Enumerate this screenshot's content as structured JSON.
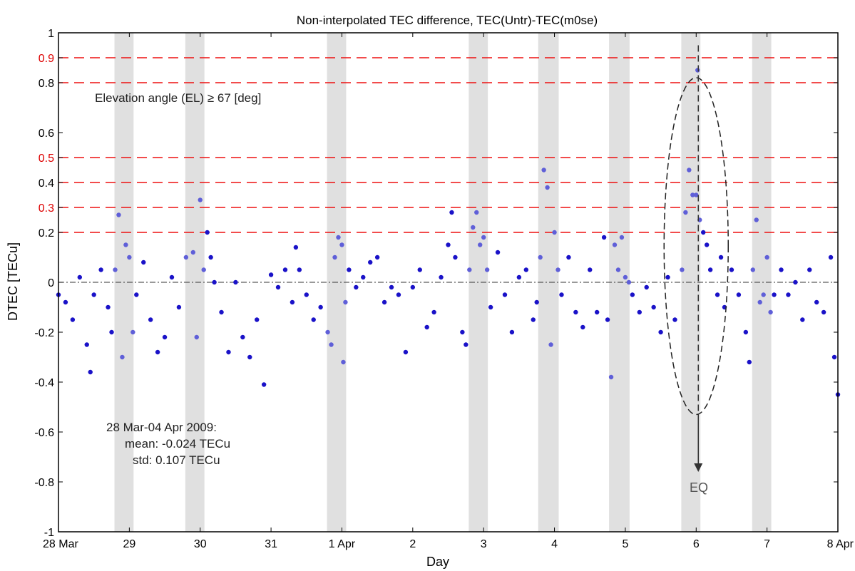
{
  "chart_data": {
    "type": "scatter",
    "title": "Non-interpolated TEC difference, TEC(Untr)-TEC(m0se)",
    "xlabel": "Day",
    "ylabel": "DTEC [TECu]",
    "xlim": [
      0,
      11
    ],
    "ylim": [
      -1,
      1
    ],
    "x_tick_positions": [
      0,
      1,
      2,
      3,
      4,
      5,
      6,
      7,
      8,
      9,
      10,
      11
    ],
    "x_tick_labels": [
      "28 Mar",
      "29",
      "30",
      "31",
      "1 Apr",
      "2",
      "3",
      "4",
      "5",
      "6",
      "7",
      "8 Apr"
    ],
    "y_ticks": [
      {
        "value": 1,
        "label": "1"
      },
      {
        "value": 0.9,
        "label": "0.9"
      },
      {
        "value": 0.8,
        "label": "0.8"
      },
      {
        "value": 0.6,
        "label": "0.6"
      },
      {
        "value": 0.5,
        "label": "0.5"
      },
      {
        "value": 0.4,
        "label": "0.4"
      },
      {
        "value": 0.3,
        "label": "0.3"
      },
      {
        "value": 0.2,
        "label": "0.2"
      },
      {
        "value": 0,
        "label": "0"
      },
      {
        "value": -0.2,
        "label": "-0.2"
      },
      {
        "value": -0.4,
        "label": "-0.4"
      },
      {
        "value": -0.6,
        "label": "-0.6"
      },
      {
        "value": -0.8,
        "label": "-0.8"
      },
      {
        "value": -1,
        "label": "-1"
      }
    ],
    "highlight_tick_values": [
      0.9,
      0.5,
      0.3
    ],
    "threshold_lines": [
      0.9,
      0.8,
      0.5,
      0.4,
      0.3,
      0.2
    ],
    "zero_line": 0,
    "shaded_bands": [
      [
        0.79,
        1.06
      ],
      [
        1.79,
        2.06
      ],
      [
        3.79,
        4.06
      ],
      [
        5.79,
        6.06
      ],
      [
        6.77,
        7.06
      ],
      [
        7.77,
        8.06
      ],
      [
        8.79,
        9.06
      ],
      [
        9.79,
        10.06
      ]
    ],
    "series": [
      {
        "points": [
          [
            0.0,
            -0.05
          ],
          [
            0.1,
            -0.08
          ],
          [
            0.2,
            -0.15
          ],
          [
            0.3,
            0.02
          ],
          [
            0.4,
            -0.25
          ],
          [
            0.45,
            -0.36
          ],
          [
            0.5,
            -0.05
          ],
          [
            0.6,
            0.05
          ],
          [
            0.7,
            -0.1
          ],
          [
            0.75,
            -0.2
          ],
          [
            0.8,
            0.05
          ],
          [
            0.85,
            0.27
          ],
          [
            0.9,
            -0.3
          ],
          [
            0.95,
            0.15
          ],
          [
            1.0,
            0.1
          ],
          [
            1.05,
            -0.2
          ],
          [
            1.1,
            -0.05
          ],
          [
            1.2,
            0.08
          ],
          [
            1.3,
            -0.15
          ],
          [
            1.4,
            -0.28
          ],
          [
            1.5,
            -0.22
          ],
          [
            1.6,
            0.02
          ],
          [
            1.7,
            -0.1
          ],
          [
            1.8,
            0.1
          ],
          [
            1.9,
            0.12
          ],
          [
            1.95,
            -0.22
          ],
          [
            2.0,
            0.33
          ],
          [
            2.05,
            0.05
          ],
          [
            2.1,
            0.2
          ],
          [
            2.15,
            0.1
          ],
          [
            2.2,
            0.0
          ],
          [
            2.3,
            -0.12
          ],
          [
            2.4,
            -0.28
          ],
          [
            2.5,
            0.0
          ],
          [
            2.6,
            -0.22
          ],
          [
            2.7,
            -0.3
          ],
          [
            2.8,
            -0.15
          ],
          [
            2.9,
            -0.41
          ],
          [
            3.0,
            0.03
          ],
          [
            3.1,
            -0.02
          ],
          [
            3.2,
            0.05
          ],
          [
            3.3,
            -0.08
          ],
          [
            3.35,
            0.14
          ],
          [
            3.4,
            0.05
          ],
          [
            3.5,
            -0.05
          ],
          [
            3.6,
            -0.15
          ],
          [
            3.7,
            -0.1
          ],
          [
            3.8,
            -0.2
          ],
          [
            3.85,
            -0.25
          ],
          [
            3.9,
            0.1
          ],
          [
            3.95,
            0.18
          ],
          [
            4.0,
            0.15
          ],
          [
            4.02,
            -0.32
          ],
          [
            4.05,
            -0.08
          ],
          [
            4.1,
            0.05
          ],
          [
            4.2,
            -0.02
          ],
          [
            4.3,
            0.02
          ],
          [
            4.4,
            0.08
          ],
          [
            4.5,
            0.1
          ],
          [
            4.6,
            -0.08
          ],
          [
            4.7,
            -0.02
          ],
          [
            4.8,
            -0.05
          ],
          [
            4.9,
            -0.28
          ],
          [
            5.0,
            -0.02
          ],
          [
            5.1,
            0.05
          ],
          [
            5.2,
            -0.18
          ],
          [
            5.3,
            -0.12
          ],
          [
            5.4,
            0.02
          ],
          [
            5.5,
            0.15
          ],
          [
            5.55,
            0.28
          ],
          [
            5.6,
            0.1
          ],
          [
            5.7,
            -0.2
          ],
          [
            5.75,
            -0.25
          ],
          [
            5.8,
            0.05
          ],
          [
            5.85,
            0.22
          ],
          [
            5.9,
            0.28
          ],
          [
            5.95,
            0.15
          ],
          [
            6.0,
            0.18
          ],
          [
            6.05,
            0.05
          ],
          [
            6.1,
            -0.1
          ],
          [
            6.2,
            0.12
          ],
          [
            6.3,
            -0.05
          ],
          [
            6.4,
            -0.2
          ],
          [
            6.5,
            0.02
          ],
          [
            6.6,
            0.05
          ],
          [
            6.7,
            -0.15
          ],
          [
            6.75,
            -0.08
          ],
          [
            6.8,
            0.1
          ],
          [
            6.85,
            0.45
          ],
          [
            6.9,
            0.38
          ],
          [
            6.95,
            -0.25
          ],
          [
            7.0,
            0.2
          ],
          [
            7.05,
            0.05
          ],
          [
            7.1,
            -0.05
          ],
          [
            7.2,
            0.1
          ],
          [
            7.3,
            -0.12
          ],
          [
            7.4,
            -0.18
          ],
          [
            7.5,
            0.05
          ],
          [
            7.6,
            -0.12
          ],
          [
            7.7,
            0.18
          ],
          [
            7.75,
            -0.15
          ],
          [
            7.8,
            -0.38
          ],
          [
            7.85,
            0.15
          ],
          [
            7.9,
            0.05
          ],
          [
            7.95,
            0.18
          ],
          [
            8.0,
            0.02
          ],
          [
            8.05,
            0.0
          ],
          [
            8.1,
            -0.05
          ],
          [
            8.2,
            -0.12
          ],
          [
            8.3,
            -0.02
          ],
          [
            8.4,
            -0.1
          ],
          [
            8.5,
            -0.2
          ],
          [
            8.6,
            0.02
          ],
          [
            8.7,
            -0.15
          ],
          [
            8.8,
            0.05
          ],
          [
            8.85,
            0.28
          ],
          [
            8.9,
            0.45
          ],
          [
            8.95,
            0.35
          ],
          [
            9.0,
            0.35
          ],
          [
            9.02,
            0.85
          ],
          [
            9.05,
            0.25
          ],
          [
            9.1,
            0.2
          ],
          [
            9.15,
            0.15
          ],
          [
            9.2,
            0.05
          ],
          [
            9.3,
            -0.05
          ],
          [
            9.35,
            0.1
          ],
          [
            9.4,
            -0.1
          ],
          [
            9.5,
            0.05
          ],
          [
            9.6,
            -0.05
          ],
          [
            9.7,
            -0.2
          ],
          [
            9.75,
            -0.32
          ],
          [
            9.8,
            0.05
          ],
          [
            9.85,
            0.25
          ],
          [
            9.9,
            -0.08
          ],
          [
            9.95,
            -0.05
          ],
          [
            10.0,
            0.1
          ],
          [
            10.05,
            -0.12
          ],
          [
            10.1,
            -0.05
          ],
          [
            10.2,
            0.05
          ],
          [
            10.3,
            -0.05
          ],
          [
            10.4,
            0.0
          ],
          [
            10.5,
            -0.15
          ],
          [
            10.6,
            0.05
          ],
          [
            10.7,
            -0.08
          ],
          [
            10.8,
            -0.12
          ],
          [
            10.9,
            0.1
          ],
          [
            10.95,
            -0.3
          ],
          [
            11.0,
            -0.45
          ]
        ]
      }
    ],
    "annotations": {
      "elevation": "Elevation angle (EL) ≥ 67 [deg]",
      "period": "28 Mar-04 Apr 2009:",
      "mean": "mean: -0.024 TECu",
      "std": "std:     0.107 TECu",
      "eq": "EQ"
    },
    "eq_day": 9.03,
    "colors": {
      "points_dark": "#1a12c8",
      "points_light": "#5f5fd8",
      "threshold": "#ee1111",
      "band": "#e0e0e0",
      "highlight_tick": "#dd0000"
    }
  }
}
